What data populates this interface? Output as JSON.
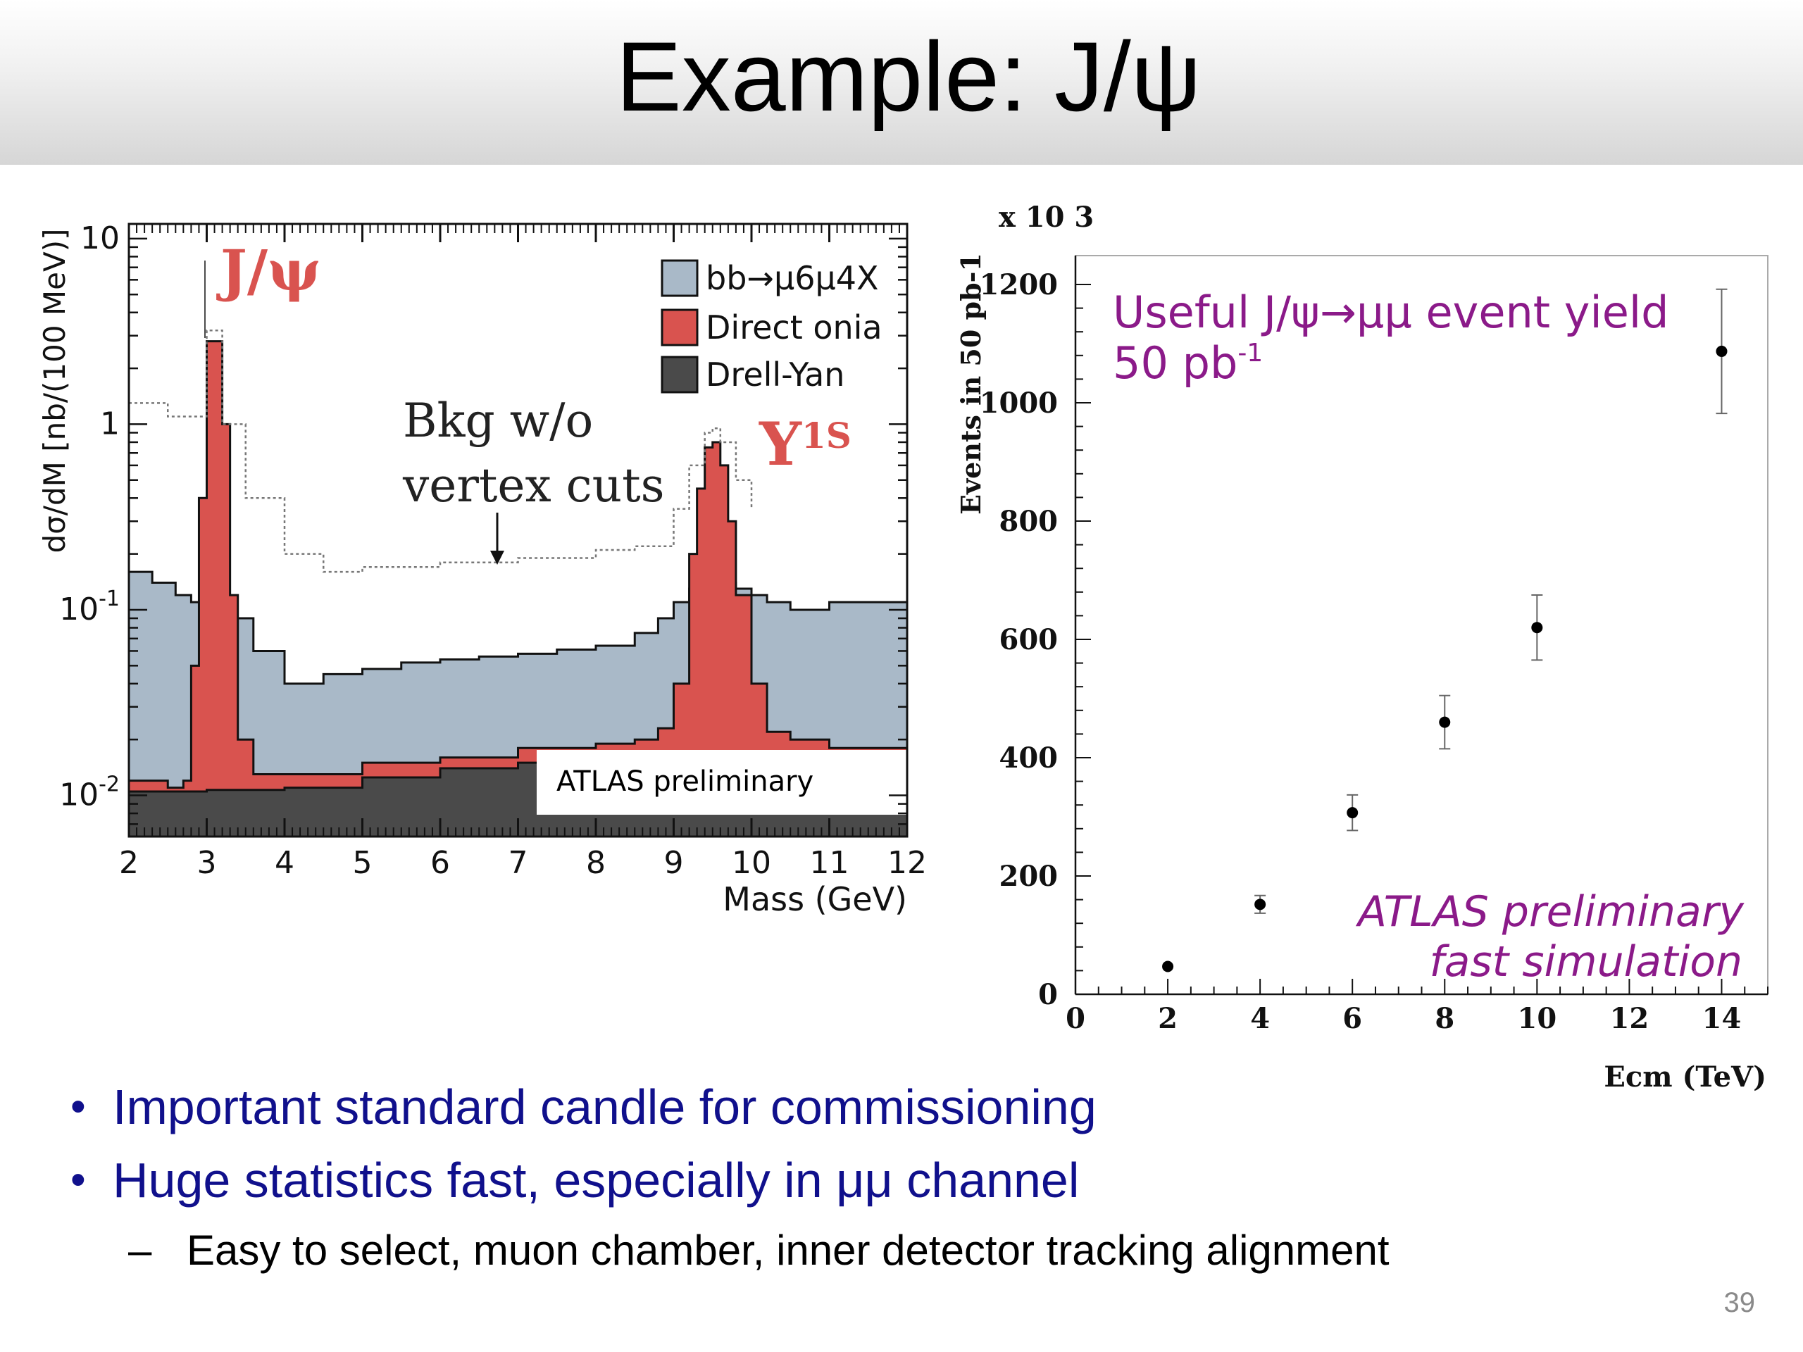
{
  "slide": {
    "title": "Example: J/ψ",
    "page_number": "39"
  },
  "bullets": [
    {
      "text": "Important standard candle for commissioning",
      "marker": "•"
    },
    {
      "text": "Huge statistics fast, especially in μμ channel",
      "marker": "•"
    }
  ],
  "sub_bullets": [
    {
      "text": "Easy to select, muon chamber, inner detector tracking alignment",
      "marker": "–"
    }
  ],
  "chart_data": [
    {
      "type": "area",
      "xlabel": "Mass (GeV)",
      "ylabel": "dσ/dM [nb/(100 MeV)]",
      "xlim": [
        2,
        12
      ],
      "ylim": [
        0.006,
        12
      ],
      "y_scale": "log",
      "x_ticks": [
        "2",
        "3",
        "4",
        "5",
        "6",
        "7",
        "8",
        "9",
        "10",
        "11",
        "12"
      ],
      "y_tick_labels": [
        {
          "value": 10,
          "base": "10",
          "exp": ""
        },
        {
          "value": 1,
          "base": "1",
          "exp": ""
        },
        {
          "value": 0.1,
          "base": "10",
          "exp": "-1"
        },
        {
          "value": 0.01,
          "base": "10",
          "exp": "-2"
        }
      ],
      "legend_position": "top-right",
      "series": [
        {
          "name": "bb→μ6μ4X",
          "color": "#a9b9c8",
          "x": [
            2.0,
            2.3,
            2.6,
            2.8,
            3.0,
            3.3,
            3.6,
            4.0,
            4.5,
            5.0,
            5.5,
            6.0,
            6.5,
            7.0,
            7.5,
            8.0,
            8.5,
            8.8,
            9.0,
            9.2,
            9.4,
            9.6,
            9.8,
            10.0,
            10.2,
            10.5,
            11.0,
            11.5,
            12.0
          ],
          "values": [
            0.16,
            0.14,
            0.12,
            0.11,
            0.11,
            0.09,
            0.06,
            0.04,
            0.045,
            0.048,
            0.052,
            0.054,
            0.056,
            0.058,
            0.061,
            0.064,
            0.075,
            0.09,
            0.11,
            0.13,
            0.14,
            0.14,
            0.13,
            0.12,
            0.11,
            0.1,
            0.11,
            0.11,
            0.12
          ]
        },
        {
          "name": "Direct onia",
          "color": "#d9534f",
          "x": [
            2.0,
            2.5,
            2.7,
            2.8,
            2.9,
            3.0,
            3.1,
            3.2,
            3.3,
            3.4,
            3.6,
            4.0,
            5.0,
            6.0,
            7.0,
            8.0,
            8.5,
            8.8,
            9.0,
            9.2,
            9.3,
            9.4,
            9.5,
            9.6,
            9.7,
            9.8,
            10.0,
            10.2,
            10.5,
            11.0,
            12.0
          ],
          "values": [
            0.012,
            0.011,
            0.012,
            0.05,
            0.4,
            2.8,
            2.8,
            1.0,
            0.12,
            0.02,
            0.013,
            0.013,
            0.015,
            0.016,
            0.018,
            0.019,
            0.02,
            0.023,
            0.04,
            0.2,
            0.45,
            0.75,
            0.8,
            0.6,
            0.3,
            0.12,
            0.04,
            0.022,
            0.02,
            0.018,
            0.02
          ]
        },
        {
          "name": "Drell-Yan",
          "color": "#4a4a4a",
          "x": [
            2.0,
            3.0,
            4.0,
            5.0,
            6.0,
            7.0,
            8.0,
            9.0,
            10.0,
            11.0,
            12.0
          ],
          "values": [
            0.0105,
            0.0107,
            0.011,
            0.0125,
            0.014,
            0.015,
            0.015,
            0.0155,
            0.0155,
            0.015,
            0.016
          ]
        },
        {
          "name": "",
          "style": "dotted",
          "x": [
            2.0,
            2.5,
            2.8,
            3.0,
            3.2,
            3.5,
            4.0,
            4.5,
            5.0,
            6.0,
            7.0,
            8.0,
            8.5,
            9.0,
            9.2,
            9.4,
            9.5,
            9.6,
            9.8,
            10.0
          ],
          "values": [
            1.3,
            1.1,
            1.1,
            3.2,
            1.0,
            0.4,
            0.2,
            0.16,
            0.17,
            0.18,
            0.19,
            0.21,
            0.22,
            0.35,
            0.6,
            0.9,
            0.95,
            0.8,
            0.5,
            0.35
          ]
        }
      ],
      "annotations": [
        {
          "text": "J/ψ",
          "color": "#d9534f"
        },
        {
          "text": "Υ",
          "sup": "1S",
          "color": "#d9534f"
        },
        {
          "text_line1": "Bkg w/o",
          "text_line2": "vertex cuts"
        },
        {
          "text": "ATLAS preliminary"
        }
      ]
    },
    {
      "type": "scatter",
      "xlabel": "Ecm (TeV)",
      "ylabel": "Events in 50 pb-1",
      "y_multiplier": "x 10 3",
      "xlim": [
        0,
        15
      ],
      "ylim": [
        0,
        1200
      ],
      "x_ticks": [
        "0",
        "2",
        "4",
        "6",
        "8",
        "10",
        "12",
        "14"
      ],
      "y_ticks": [
        "0",
        "200",
        "400",
        "600",
        "800",
        "1000",
        "1200"
      ],
      "x": [
        2,
        4,
        6,
        8,
        10,
        14
      ],
      "values": [
        47,
        152,
        307,
        460,
        620,
        1087
      ],
      "errors": [
        0,
        15,
        30,
        45,
        55,
        105
      ],
      "title_line1": "Useful J/ψ→μμ event yield",
      "title_line2": "50 pb",
      "title_sup": "-1",
      "title_color": "#8b1a89",
      "annotation_line1": "ATLAS preliminary",
      "annotation_line2": "fast simulation"
    }
  ]
}
